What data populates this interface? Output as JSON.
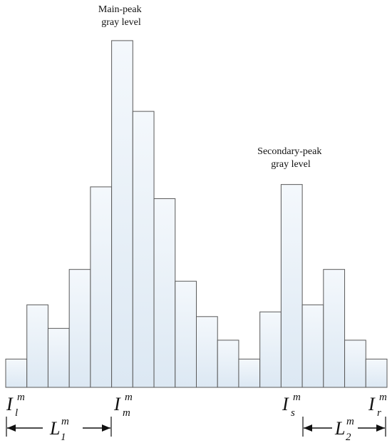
{
  "chart_data": {
    "type": "bar",
    "title": "",
    "xlabel": "",
    "ylabel": "",
    "values": [
      1.2,
      3.5,
      2.5,
      5.0,
      8.5,
      14.7,
      11.7,
      8.0,
      4.5,
      3.0,
      2.0,
      1.2,
      3.2,
      8.6,
      3.5,
      5.0,
      2.0,
      1.2
    ],
    "ylim": [
      0,
      15
    ],
    "grid": false,
    "legend": "none",
    "bar_color": "#e4eef7",
    "bar_edge_color": "#5a5a5a",
    "annotations": {
      "main_peak": {
        "text_lines": [
          "Main-peak",
          "gray level"
        ],
        "bar_index": 5
      },
      "secondary_peak": {
        "text_lines": [
          "Secondary-peak",
          "gray level"
        ],
        "bar_index": 13
      }
    },
    "tick_symbols": [
      {
        "base": "I",
        "sup": "m",
        "sub": "l",
        "bar_index": 0,
        "position": "left-edge"
      },
      {
        "base": "I",
        "sup": "m",
        "sub": "m",
        "bar_index": 5
      },
      {
        "base": "I",
        "sup": "m",
        "sub": "s",
        "bar_index": 13
      },
      {
        "base": "I",
        "sup": "m",
        "sub": "r",
        "bar_index": 17,
        "position": "right-edge"
      }
    ],
    "spans": [
      {
        "base": "L",
        "sup": "m",
        "sub": "1",
        "from_bar": 0,
        "to_bar": 5
      },
      {
        "base": "L",
        "sup": "m",
        "sub": "2",
        "from_bar": 14,
        "to_bar": 17
      }
    ]
  }
}
